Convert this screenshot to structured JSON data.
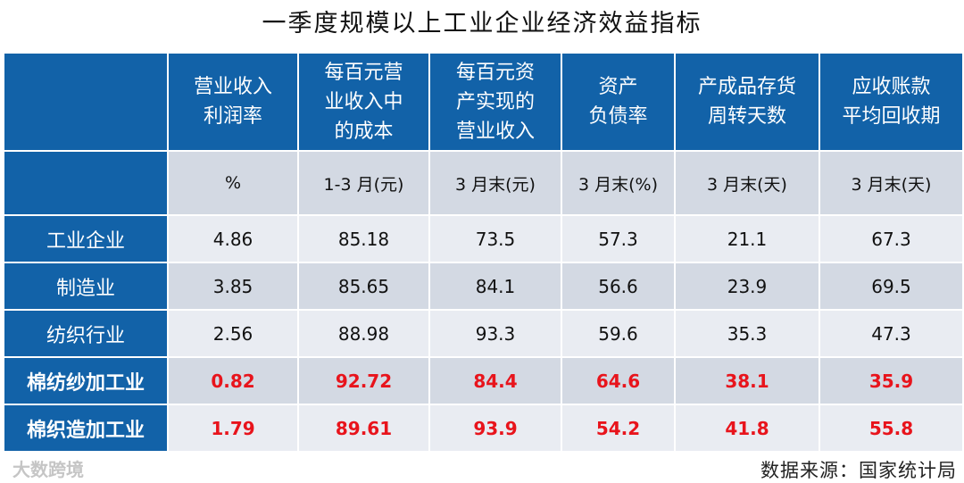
{
  "title": "一季度规模以上工业企业经济效益指标",
  "table": {
    "header": [
      [
        "营业收入",
        "利润率"
      ],
      [
        "每百元营",
        "业收入中",
        "的成本"
      ],
      [
        "每百元资",
        "产实现的",
        "营业收入"
      ],
      [
        "资产",
        "负债率"
      ],
      [
        "产成品存货",
        "周转天数"
      ],
      [
        "应收账款",
        "平均回收期"
      ]
    ],
    "units": [
      "%",
      "1-3 月(元)",
      "3 月末(元)",
      "3 月末(%)",
      "3 月末(天)",
      "3 月末(天)"
    ],
    "rows": [
      {
        "label": "工业企业",
        "cells": [
          "4.86",
          "85.18",
          "73.5",
          "57.3",
          "21.1",
          "67.3"
        ]
      },
      {
        "label": "制造业",
        "cells": [
          "3.85",
          "85.65",
          "84.1",
          "56.6",
          "23.9",
          "69.5"
        ]
      },
      {
        "label": "纺织行业",
        "cells": [
          "2.56",
          "88.98",
          "93.3",
          "59.6",
          "35.3",
          "47.3"
        ]
      },
      {
        "label": "棉纺纱加工业",
        "cells": [
          "0.82",
          "92.72",
          "84.4",
          "64.6",
          "38.1",
          "35.9"
        ]
      },
      {
        "label": "棉织造加工业",
        "cells": [
          "1.79",
          "89.61",
          "93.9",
          "54.2",
          "41.8",
          "55.8"
        ]
      }
    ]
  },
  "source": "数据来源：国家统计局",
  "watermark": "大数跨境"
}
